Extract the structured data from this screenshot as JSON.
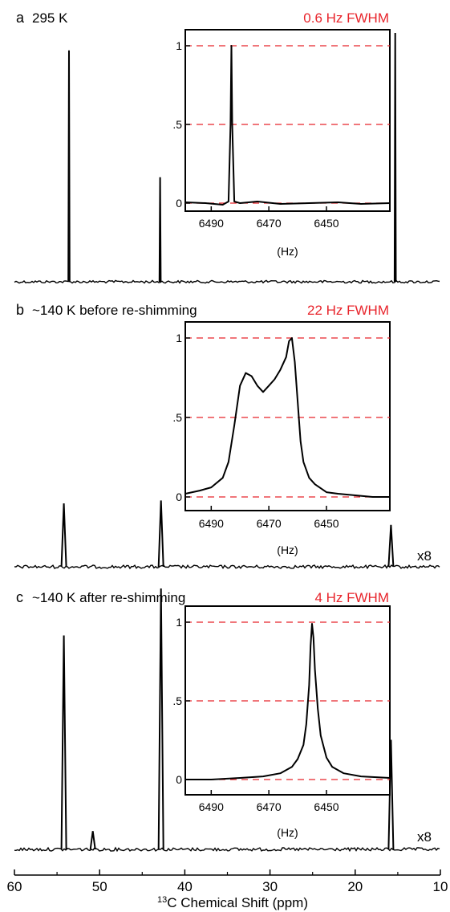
{
  "chart_data": [
    {
      "type": "line",
      "panel": "a",
      "title": "295 K",
      "annotation": "0.6 Hz FWHM",
      "annotation_color": "#e8242b",
      "scale_label": "",
      "peaks": [
        {
          "x": 53.6,
          "y": 0.93
        },
        {
          "x": 42.9,
          "y": 0.42
        },
        {
          "x": 15.3,
          "y": 1.0
        }
      ],
      "inset": {
        "xlabel": "(Hz)",
        "xticks": [
          "6490",
          "6470",
          "6450"
        ],
        "yticks": [
          "0",
          ".5",
          "1"
        ],
        "xlim": [
          6499,
          6428
        ],
        "ylim": [
          0,
          1
        ],
        "grid": "dashed",
        "grid_color": "#e8242b",
        "series": [
          {
            "x": [
              6499,
              6492,
              6486,
              6484,
              6483.3,
              6483,
              6482.7,
              6482,
              6480,
              6474,
              6466,
              6456,
              6446,
              6438,
              6428
            ],
            "y": [
              0.005,
              0.0,
              -0.01,
              0.01,
              0.5,
              1.0,
              0.5,
              0.01,
              0.0,
              0.01,
              -0.005,
              0.0,
              0.005,
              -0.005,
              0.0
            ]
          }
        ]
      }
    },
    {
      "type": "line",
      "panel": "b",
      "title": "~140 K before re-shimming",
      "annotation": "22 Hz FWHM",
      "annotation_color": "#e8242b",
      "scale_label": "x8",
      "peaks": [
        {
          "x": 54.2,
          "y": 0.83
        },
        {
          "x": 42.8,
          "y": 0.87
        },
        {
          "x": 15.8,
          "y": 0.55
        }
      ],
      "inset": {
        "xlabel": "(Hz)",
        "xticks": [
          "6490",
          "6470",
          "6450"
        ],
        "yticks": [
          "0",
          ".5",
          "1"
        ],
        "xlim": [
          6499,
          6428
        ],
        "ylim": [
          0,
          1
        ],
        "grid": "dashed",
        "grid_color": "#e8242b",
        "series": [
          {
            "x": [
              6499,
              6494,
              6490,
              6486,
              6484,
              6482,
              6480,
              6478,
              6476,
              6474,
              6472,
              6470,
              6468,
              6466,
              6464,
              6463,
              6462,
              6461,
              6460,
              6459,
              6458,
              6456,
              6454,
              6450,
              6446,
              6440,
              6434,
              6428
            ],
            "y": [
              0.02,
              0.04,
              0.06,
              0.12,
              0.22,
              0.45,
              0.7,
              0.78,
              0.76,
              0.7,
              0.66,
              0.7,
              0.74,
              0.8,
              0.88,
              0.98,
              1.0,
              0.85,
              0.6,
              0.35,
              0.22,
              0.12,
              0.08,
              0.03,
              0.02,
              0.01,
              0.0,
              0.0
            ]
          }
        ]
      }
    },
    {
      "type": "line",
      "panel": "c",
      "title": "~140 K after re-shimming",
      "annotation": "4 Hz FWHM",
      "annotation_color": "#e8242b",
      "scale_label": "x8",
      "xlabel_prefix": "13",
      "xlabel": "C Chemical Shift (ppm)",
      "xticks": [
        60,
        50,
        40,
        30,
        20,
        10
      ],
      "xlim": [
        60,
        10
      ],
      "peaks": [
        {
          "x": 54.2,
          "y": 0.82
        },
        {
          "x": 50.8,
          "y": 0.07
        },
        {
          "x": 42.8,
          "y": 1.0
        },
        {
          "x": 15.8,
          "y": 0.42
        }
      ],
      "inset": {
        "xlabel": "(Hz)",
        "xticks": [
          "6490",
          "6470",
          "6450"
        ],
        "yticks": [
          "0",
          ".5",
          "1"
        ],
        "xlim": [
          6499,
          6428
        ],
        "ylim": [
          0,
          1
        ],
        "grid": "dashed",
        "grid_color": "#e8242b",
        "series": [
          {
            "x": [
              6499,
              6490,
              6480,
              6472,
              6466,
              6462,
              6460,
              6458,
              6457,
              6456,
              6455.5,
              6455,
              6454.5,
              6454,
              6453,
              6452,
              6450,
              6448,
              6444,
              6438,
              6428
            ],
            "y": [
              0.0,
              0.0,
              0.01,
              0.02,
              0.04,
              0.08,
              0.13,
              0.22,
              0.35,
              0.6,
              0.85,
              0.99,
              0.9,
              0.7,
              0.45,
              0.28,
              0.14,
              0.08,
              0.04,
              0.02,
              0.01
            ]
          }
        ]
      }
    }
  ]
}
